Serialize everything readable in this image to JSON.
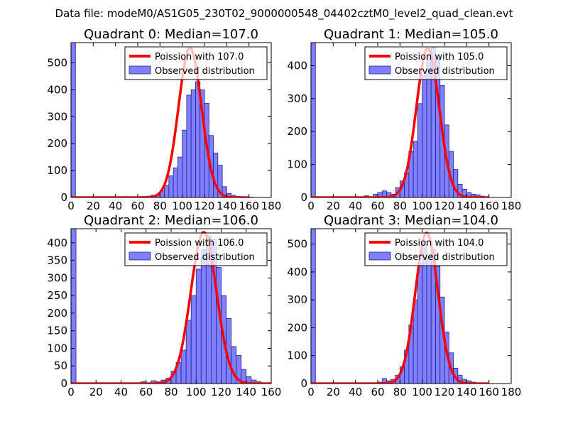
{
  "figure": {
    "suptitle": "Data file: modeM0/AS1G05_230T02_9000000548_04402cztM0_level2_quad_clean.evt"
  },
  "colors": {
    "bar_fill": "#8080ff",
    "bar_edge": "#202088",
    "curve": "#ff0000",
    "axis": "#000000",
    "background": "#ffffff"
  },
  "chart_data": [
    {
      "type": "bar+line",
      "title": "Quadrant 0: Median=107.0",
      "xlim": [
        0,
        180
      ],
      "ylim": [
        0,
        575
      ],
      "xticks": [
        0,
        20,
        40,
        60,
        80,
        100,
        120,
        140,
        160,
        180
      ],
      "yticks": [
        0,
        100,
        200,
        300,
        400,
        500
      ],
      "bin_width": 4,
      "hist_bins": [
        0,
        68,
        72,
        76,
        80,
        84,
        88,
        92,
        96,
        100,
        104,
        108,
        112,
        116,
        120,
        124,
        128,
        132,
        136,
        140,
        144,
        148,
        152,
        156,
        160
      ],
      "hist_values": [
        575,
        5,
        8,
        10,
        25,
        45,
        80,
        110,
        150,
        250,
        380,
        400,
        430,
        400,
        350,
        230,
        165,
        120,
        40,
        15,
        8,
        4,
        2,
        1,
        1
      ],
      "curve_mean": 107.0,
      "curve_peak": 555,
      "curve_xrange": [
        0,
        160
      ],
      "legend": {
        "curve_label": "Poission with 107.0",
        "bar_label": "Observed distribution",
        "loc": "upper right"
      }
    },
    {
      "type": "bar+line",
      "title": "Quadrant 1: Median=105.0",
      "xlim": [
        0,
        180
      ],
      "ylim": [
        0,
        470
      ],
      "xticks": [
        0,
        20,
        40,
        60,
        80,
        100,
        120,
        140,
        160,
        180
      ],
      "yticks": [
        0,
        100,
        200,
        300,
        400
      ],
      "bin_width": 4,
      "hist_bins": [
        0,
        48,
        56,
        60,
        64,
        68,
        72,
        76,
        80,
        84,
        88,
        92,
        96,
        100,
        104,
        108,
        112,
        116,
        120,
        124,
        128,
        132,
        136,
        140,
        144,
        148,
        152
      ],
      "hist_values": [
        470,
        5,
        10,
        15,
        20,
        15,
        10,
        30,
        50,
        75,
        140,
        170,
        285,
        370,
        430,
        455,
        420,
        340,
        220,
        140,
        85,
        40,
        25,
        15,
        10,
        8,
        4
      ],
      "curve_mean": 105.0,
      "curve_peak": 452,
      "curve_xrange": [
        0,
        160
      ],
      "legend": {
        "curve_label": "Poission with 105.0",
        "bar_label": "Observed distribution",
        "loc": "upper right"
      }
    },
    {
      "type": "bar+line",
      "title": "Quadrant 2: Median=106.0",
      "xlim": [
        0,
        160
      ],
      "ylim": [
        0,
        440
      ],
      "xticks": [
        0,
        20,
        40,
        60,
        80,
        100,
        120,
        140,
        160
      ],
      "yticks": [
        0,
        50,
        100,
        150,
        200,
        250,
        300,
        350,
        400
      ],
      "bin_width": 4,
      "hist_bins": [
        0,
        56,
        64,
        68,
        72,
        76,
        80,
        84,
        88,
        92,
        96,
        100,
        104,
        108,
        112,
        116,
        120,
        124,
        128,
        132,
        136,
        140,
        144,
        148
      ],
      "hist_values": [
        440,
        5,
        8,
        5,
        10,
        15,
        35,
        60,
        95,
        180,
        250,
        325,
        380,
        420,
        410,
        330,
        250,
        185,
        105,
        80,
        40,
        20,
        10,
        5
      ],
      "curve_mean": 106.0,
      "curve_peak": 430,
      "curve_xrange": [
        0,
        160
      ],
      "legend": {
        "curve_label": "Poission with 106.0",
        "bar_label": "Observed distribution",
        "loc": "upper right"
      }
    },
    {
      "type": "bar+line",
      "title": "Quadrant 3: Median=104.0",
      "xlim": [
        0,
        180
      ],
      "ylim": [
        0,
        555
      ],
      "xticks": [
        0,
        20,
        40,
        60,
        80,
        100,
        120,
        140,
        160,
        180
      ],
      "yticks": [
        0,
        100,
        200,
        300,
        400,
        500
      ],
      "bin_width": 4,
      "hist_bins": [
        0,
        60,
        64,
        68,
        72,
        76,
        80,
        84,
        88,
        92,
        96,
        100,
        104,
        108,
        112,
        116,
        120,
        124,
        128,
        132,
        136,
        140,
        144
      ],
      "hist_values": [
        555,
        5,
        18,
        10,
        15,
        30,
        60,
        120,
        210,
        300,
        430,
        510,
        455,
        480,
        420,
        310,
        185,
        110,
        55,
        30,
        15,
        10,
        5
      ],
      "curve_mean": 104.0,
      "curve_peak": 540,
      "curve_xrange": [
        0,
        160
      ],
      "legend": {
        "curve_label": "Poission with 104.0",
        "bar_label": "Observed distribution",
        "loc": "upper right"
      }
    }
  ]
}
